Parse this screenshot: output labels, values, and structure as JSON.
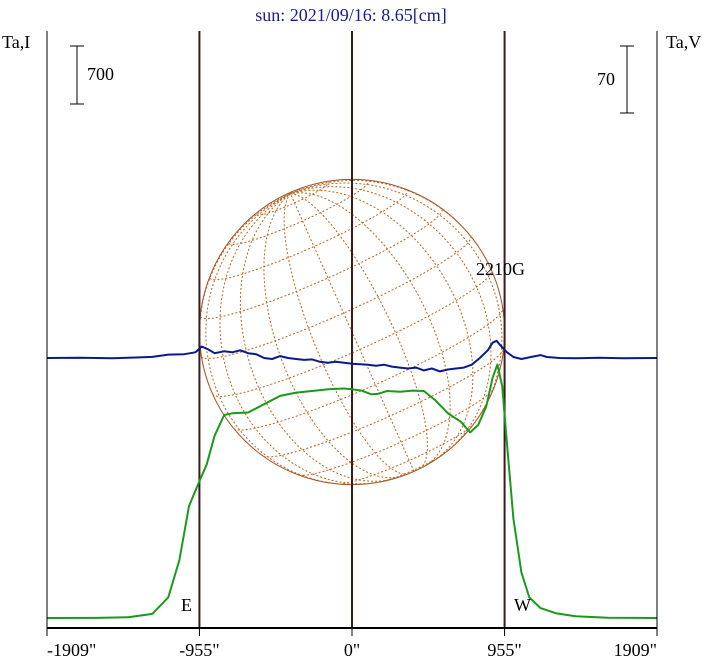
{
  "chart_data": {
    "type": "line",
    "title": "sun: 2021/09/16: 8.65[cm]",
    "y_left_label": "Ta,I",
    "y_right_label": "Ta,V",
    "scale_left": "700",
    "scale_right": "70",
    "x_tick_labels": [
      "-1909\"",
      "-955\"",
      "0\"",
      "955\"",
      "1909\""
    ],
    "x_ticks": [
      -1909,
      -955,
      0,
      955,
      1909
    ],
    "xlim": [
      -1909,
      1909
    ],
    "limb_labels": {
      "east": "E",
      "west": "W"
    },
    "annotation": "2210G",
    "grid": false,
    "series": [
      {
        "color": "#1a9a1a",
        "points": [
          [
            -1909,
            0
          ],
          [
            -1600,
            1
          ],
          [
            -1400,
            10
          ],
          [
            -1250,
            50
          ],
          [
            -1150,
            250
          ],
          [
            -1080,
            700
          ],
          [
            -1020,
            1350
          ],
          [
            -955,
            1650
          ],
          [
            -910,
            1850
          ],
          [
            -860,
            2200
          ],
          [
            -800,
            2450
          ],
          [
            -750,
            2470
          ],
          [
            -650,
            2480
          ],
          [
            -550,
            2580
          ],
          [
            -450,
            2680
          ],
          [
            -350,
            2720
          ],
          [
            -250,
            2740
          ],
          [
            -150,
            2760
          ],
          [
            -50,
            2770
          ],
          [
            0,
            2760
          ],
          [
            60,
            2745
          ],
          [
            120,
            2700
          ],
          [
            160,
            2705
          ],
          [
            220,
            2740
          ],
          [
            300,
            2730
          ],
          [
            380,
            2745
          ],
          [
            450,
            2740
          ],
          [
            520,
            2630
          ],
          [
            600,
            2470
          ],
          [
            680,
            2370
          ],
          [
            740,
            2240
          ],
          [
            790,
            2330
          ],
          [
            840,
            2550
          ],
          [
            880,
            2900
          ],
          [
            910,
            3060
          ],
          [
            940,
            2800
          ],
          [
            970,
            2100
          ],
          [
            1010,
            1200
          ],
          [
            1060,
            550
          ],
          [
            1110,
            250
          ],
          [
            1180,
            120
          ],
          [
            1280,
            55
          ],
          [
            1400,
            20
          ],
          [
            1600,
            4
          ],
          [
            1909,
            0
          ]
        ]
      },
      {
        "color": "#0a1a8c",
        "points": [
          [
            -1909,
            0
          ],
          [
            -1700,
            0.3
          ],
          [
            -1500,
            -0.3
          ],
          [
            -1350,
            0.5
          ],
          [
            -1250,
            1.2
          ],
          [
            -1150,
            3.5
          ],
          [
            -1050,
            4
          ],
          [
            -980,
            6
          ],
          [
            -940,
            12
          ],
          [
            -900,
            9
          ],
          [
            -860,
            5
          ],
          [
            -800,
            7
          ],
          [
            -750,
            6
          ],
          [
            -700,
            8
          ],
          [
            -650,
            5
          ],
          [
            -600,
            4
          ],
          [
            -550,
            0
          ],
          [
            -500,
            -1
          ],
          [
            -450,
            2
          ],
          [
            -400,
            0
          ],
          [
            -350,
            -1
          ],
          [
            -300,
            -2
          ],
          [
            -250,
            -1.5
          ],
          [
            -200,
            -4
          ],
          [
            -150,
            -5
          ],
          [
            -100,
            -4
          ],
          [
            -50,
            -5
          ],
          [
            0,
            -6
          ],
          [
            50,
            -6.5
          ],
          [
            100,
            -7
          ],
          [
            150,
            -8
          ],
          [
            200,
            -7
          ],
          [
            250,
            -9
          ],
          [
            300,
            -10
          ],
          [
            350,
            -11
          ],
          [
            400,
            -10
          ],
          [
            450,
            -13
          ],
          [
            500,
            -11
          ],
          [
            550,
            -14
          ],
          [
            600,
            -12
          ],
          [
            650,
            -11
          ],
          [
            700,
            -10
          ],
          [
            750,
            -7
          ],
          [
            800,
            0
          ],
          [
            850,
            8
          ],
          [
            880,
            16
          ],
          [
            905,
            18
          ],
          [
            935,
            12
          ],
          [
            970,
            6
          ],
          [
            1010,
            1
          ],
          [
            1060,
            -1
          ],
          [
            1120,
            1
          ],
          [
            1180,
            3
          ],
          [
            1220,
            1
          ],
          [
            1300,
            0
          ],
          [
            1400,
            -0.3
          ],
          [
            1550,
            0.2
          ],
          [
            1700,
            -0.2
          ],
          [
            1909,
            0
          ]
        ]
      }
    ]
  }
}
